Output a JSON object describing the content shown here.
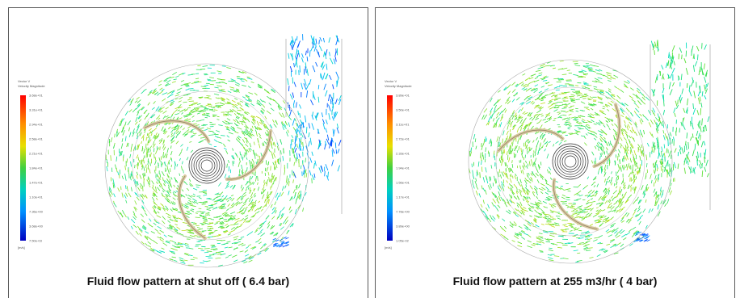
{
  "panels": [
    {
      "caption": "Fluid flow pattern at shut off ( 6.4 bar)",
      "legend": {
        "title": [
          "Vector V",
          "Velocity Magnitude"
        ],
        "ticks": [
          "3.68e+01",
          "3.31e+01",
          "2.94e+01",
          "2.58e+01",
          "2.21e+01",
          "1.84e+01",
          "1.47e+01",
          "1.10e+01",
          "7.36e+00",
          "3.68e+00",
          "7.50e-03"
        ],
        "unit": "[m/s]"
      }
    },
    {
      "caption": "Fluid flow pattern at 255 m3/hr ( 4 bar)",
      "legend": {
        "title": [
          "Vector V",
          "Velocity Magnitude"
        ],
        "ticks": [
          "3.89e+01",
          "3.50e+01",
          "3.11e+01",
          "2.72e+01",
          "2.33e+01",
          "1.94e+01",
          "1.56e+01",
          "1.17e+01",
          "7.78e+00",
          "3.89e+00",
          "1.05e-02"
        ],
        "unit": "[m/s]"
      }
    }
  ],
  "colors": {
    "border": "#5a5a5a",
    "colormap": [
      "#0000ff",
      "#00b4ff",
      "#00e0c0",
      "#40e040",
      "#a0e020",
      "#ffd000",
      "#ff0000"
    ]
  }
}
